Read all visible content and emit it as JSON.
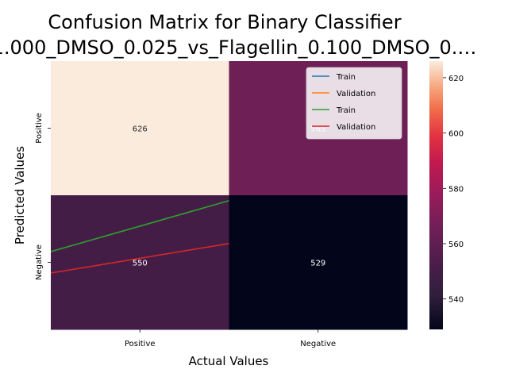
{
  "chart_data": {
    "type": "heatmap",
    "title": "Confusion Matrix for Binary Classifier",
    "subtitle": "…1.000_DMSO_0.025_vs_Flagellin_0.100_DMSO_0.…",
    "xlabel": "Actual Values",
    "ylabel": "Predicted Values",
    "x_categories": [
      "Positive",
      "Negative"
    ],
    "y_categories": [
      "Positive",
      "Negative"
    ],
    "matrix": [
      [
        626,
        565
      ],
      [
        550,
        529
      ]
    ],
    "cell_labels": [
      [
        "626",
        "565"
      ],
      [
        "550",
        "529"
      ]
    ],
    "colorbar": {
      "min": 529,
      "max": 626,
      "ticks": [
        "540",
        "560",
        "580",
        "600",
        "620"
      ],
      "colormap": "rocket"
    },
    "overlay_lines": [
      {
        "name": "Train",
        "color": "#1f77b4",
        "visible": false
      },
      {
        "name": "Validation",
        "color": "#ff7f0e",
        "visible": false
      },
      {
        "name": "Train",
        "color": "#2ca02c",
        "visible": true,
        "points": [
          [
            -0.5,
            0.29
          ],
          [
            0.5,
            0.48
          ]
        ]
      },
      {
        "name": "Validation",
        "color": "#d62728",
        "visible": true,
        "points": [
          [
            -0.5,
            0.21
          ],
          [
            0.5,
            0.32
          ]
        ]
      }
    ],
    "legend_position": "top-right",
    "grid": false
  }
}
